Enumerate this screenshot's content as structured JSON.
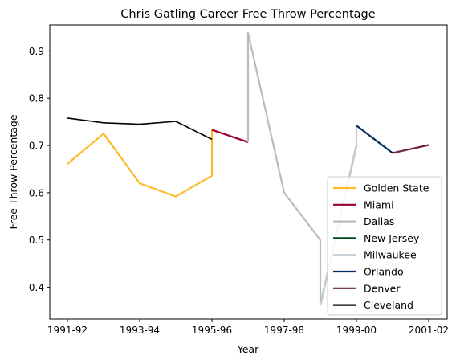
{
  "chart_data": {
    "type": "line",
    "title": "Chris Gatling Career Free Throw Percentage",
    "xlabel": "Year",
    "ylabel": "Free Throw Percentage",
    "x_ticks": [
      "1991-92",
      "1993-94",
      "1995-96",
      "1997-98",
      "1999-00",
      "2001-02"
    ],
    "xlim": [
      1991,
      2001
    ],
    "ylim": [
      0.333,
      0.955
    ],
    "y_ticks": [
      "0.4",
      "0.5",
      "0.6",
      "0.7",
      "0.8",
      "0.9"
    ],
    "legend_position": "lower right",
    "grid": false,
    "series": [
      {
        "name": "Golden State",
        "color": "#FDB927",
        "points": [
          [
            1991,
            0.661
          ],
          [
            1992,
            0.725
          ],
          [
            1993,
            0.62
          ],
          [
            1994,
            0.592
          ],
          [
            1995,
            0.636
          ],
          [
            1995,
            0.733
          ]
        ]
      },
      {
        "name": "Miami",
        "color": "#98002E",
        "points": [
          [
            1995,
            0.733
          ],
          [
            1996,
            0.707
          ]
        ]
      },
      {
        "name": "Dallas",
        "color": "#BBBBBB",
        "points": [
          [
            1996,
            0.707
          ],
          [
            1996,
            0.938
          ],
          [
            1997,
            0.6
          ],
          [
            1998,
            0.5
          ],
          [
            1998,
            0.362
          ]
        ]
      },
      {
        "name": "New Jersey",
        "color": "#00471B",
        "points": [
          [
            1998,
            0.362
          ],
          [
            1999,
            0.7
          ]
        ]
      },
      {
        "name": "Milwaukee",
        "color": "#C4CED4",
        "points": [
          [
            1998,
            0.362
          ],
          [
            1999,
            0.7
          ],
          [
            1999,
            0.742
          ]
        ]
      },
      {
        "name": "Orlando",
        "color": "#002B5C",
        "points": [
          [
            1999,
            0.742
          ],
          [
            2000,
            0.684
          ]
        ]
      },
      {
        "name": "Denver",
        "color": "#6F263D",
        "points": [
          [
            2000,
            0.684
          ],
          [
            2001,
            0.701
          ]
        ]
      },
      {
        "name": "Cleveland",
        "color": "#000000",
        "points": [
          [
            1991,
            0.758
          ],
          [
            1992,
            0.748
          ],
          [
            1993,
            0.745
          ],
          [
            1994,
            0.751
          ],
          [
            1995,
            0.713
          ]
        ]
      }
    ]
  }
}
